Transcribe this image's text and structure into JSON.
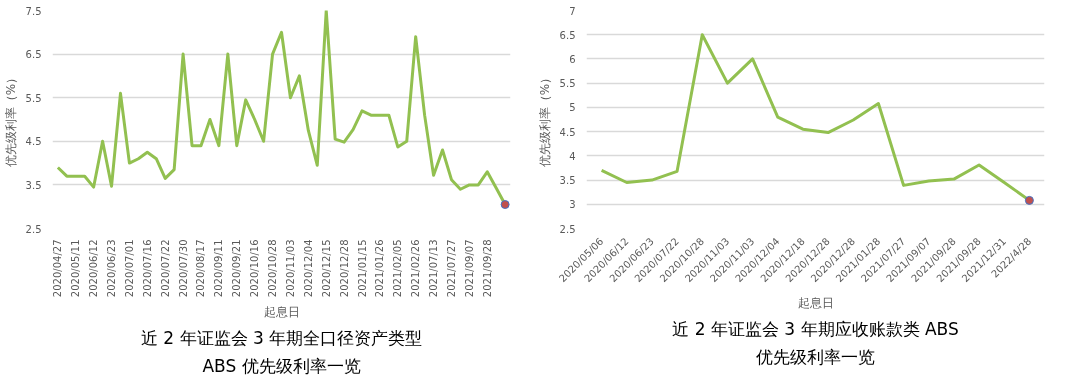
{
  "chart_data": [
    {
      "type": "line",
      "xlabel": "起息日",
      "ylabel": "优先级利率（%）",
      "categories": [
        "2020/04/27",
        null,
        "2020/05/11",
        null,
        "2020/06/12",
        null,
        "2020/06/23",
        null,
        "2020/07/01",
        null,
        "2020/07/16",
        null,
        "2020/07/22",
        null,
        "2020/07/30",
        null,
        "2020/08/17",
        null,
        "2020/09/11",
        null,
        "2020/09/21",
        null,
        "2020/10/16",
        null,
        "2020/10/28",
        null,
        "2020/11/03",
        null,
        "2020/12/04",
        null,
        "2020/12/15",
        null,
        "2020/12/28",
        null,
        "2021/01/15",
        null,
        "2021/01/26",
        null,
        "2021/02/05",
        null,
        "2021/02/26",
        null,
        "2021/07/13",
        null,
        "2021/07/27",
        null,
        "2021/09/07",
        null,
        "2021/09/28",
        null,
        null
      ],
      "series": [
        {
          "color": "#92c050",
          "values": [
            3.9,
            3.7,
            3.7,
            3.7,
            3.45,
            4.5,
            3.47,
            5.6,
            4.0,
            4.1,
            4.25,
            4.1,
            3.65,
            3.85,
            6.5,
            4.4,
            4.4,
            5.0,
            4.4,
            6.5,
            4.4,
            5.45,
            5.0,
            4.5,
            6.5,
            7.0,
            5.5,
            6.0,
            4.75,
            3.95,
            7.5,
            4.55,
            4.48,
            4.77,
            5.2,
            5.1,
            5.1,
            5.1,
            4.37,
            4.5,
            6.9,
            5.1,
            3.72,
            4.3,
            3.62,
            3.4,
            3.5,
            3.5,
            3.8,
            3.43,
            3.05
          ]
        },
        {
          "type": "scatter",
          "color": "#c0504d",
          "marker": "circle",
          "values": [
            null,
            null,
            null,
            null,
            null,
            null,
            null,
            null,
            null,
            null,
            null,
            null,
            null,
            null,
            null,
            null,
            null,
            null,
            null,
            null,
            null,
            null,
            null,
            null,
            null,
            null,
            null,
            null,
            null,
            null,
            null,
            null,
            null,
            null,
            null,
            null,
            null,
            null,
            null,
            null,
            null,
            null,
            null,
            null,
            null,
            null,
            null,
            null,
            null,
            null,
            3.05
          ]
        }
      ],
      "ylim": [
        2.5,
        7.5
      ],
      "yticks": [
        2.5,
        3.5,
        4.5,
        5.5,
        6.5,
        7.5
      ],
      "grid": "y",
      "line_style": "solid",
      "annotations": [
        "近 2 年证监会 3 年期全口径资产类型",
        "ABS 优先级利率一览"
      ]
    },
    {
      "type": "line",
      "xlabel": "起息日",
      "ylabel": "优先级利率（%）",
      "categories": [
        "2020/05/06",
        "2020/06/12",
        "2020/06/23",
        "2020/07/22",
        "2020/10/28",
        "2020/11/03",
        "2020/11/03",
        "2020/12/04",
        "2020/12/18",
        "2020/12/28",
        "2020/12/28",
        "2021/01/28",
        "2021/07/27",
        "2021/09/07",
        "2021/09/28",
        "2021/09/28",
        "2021/12/31",
        "2022/4/28"
      ],
      "series": [
        {
          "color": "#92c050",
          "values": [
            3.7,
            3.45,
            3.5,
            3.68,
            6.5,
            5.5,
            6.0,
            4.8,
            4.55,
            4.48,
            4.74,
            5.08,
            3.39,
            3.48,
            3.52,
            3.81,
            3.45,
            3.08
          ]
        },
        {
          "type": "scatter",
          "color": "#c0504d",
          "marker": "circle",
          "values": [
            null,
            null,
            null,
            null,
            null,
            null,
            null,
            null,
            null,
            null,
            null,
            null,
            null,
            null,
            null,
            null,
            null,
            3.08
          ]
        }
      ],
      "ylim": [
        2.5,
        7
      ],
      "yticks": [
        2.5,
        3,
        3.5,
        4,
        4.5,
        5,
        5.5,
        6,
        6.5,
        7
      ],
      "grid": "y",
      "line_style": "solid",
      "annotations": [
        "近 2 年证监会 3 年期应收账款类 ABS",
        "优先级利率一览"
      ]
    }
  ]
}
